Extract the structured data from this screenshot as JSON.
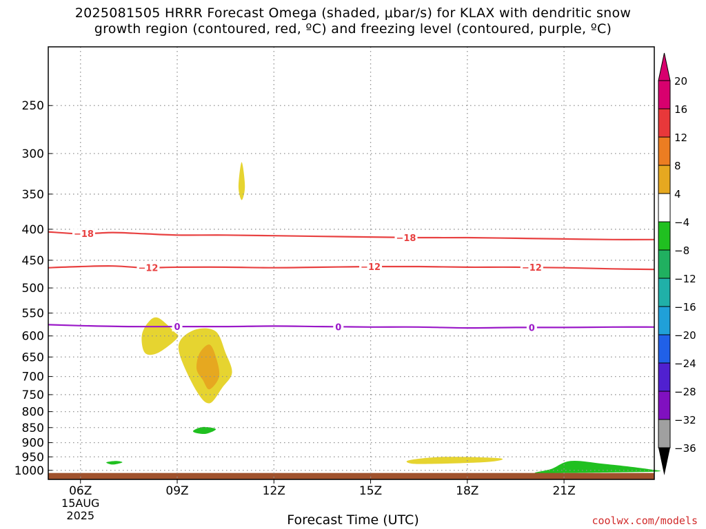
{
  "title": "2025081505 HRRR Forecast Omega (shaded, μbar/s) for KLAX with dendritic snow\ngrowth region (contoured, red, ºC) and freezing level (contoured, purple, ºC)",
  "credit": "coolwx.com/models",
  "chart_data": {
    "type": "heatmap",
    "title": "2025081505 HRRR Forecast Omega (shaded, μbar/s) for KLAX with dendritic snow growth region (contoured, red, ºC) and freezing level (contoured, purple, ºC)",
    "xlabel": "Forecast Time (UTC)",
    "ylabel": "",
    "xlim": [
      5,
      23.8
    ],
    "ylim": [
      1035,
      200
    ],
    "x_ticks": [
      {
        "value": 6,
        "label": "06Z",
        "sublabels": [
          "15AUG",
          "2025"
        ]
      },
      {
        "value": 9,
        "label": "09Z"
      },
      {
        "value": 12,
        "label": "12Z"
      },
      {
        "value": 15,
        "label": "15Z"
      },
      {
        "value": 18,
        "label": "18Z"
      },
      {
        "value": 21,
        "label": "21Z"
      }
    ],
    "y_ticks": [
      250,
      300,
      350,
      400,
      450,
      500,
      550,
      600,
      650,
      700,
      750,
      800,
      850,
      900,
      950,
      1000
    ],
    "grid": true,
    "colorbar": {
      "levels": [
        "20",
        "16",
        "12",
        "8",
        "4",
        "−4",
        "−8",
        "−12",
        "−16",
        "−20",
        "−24",
        "−28",
        "−32",
        "−36"
      ],
      "upper_fill": [
        "#d8006e",
        "#e8383a",
        "#ec7d22",
        "#e6a820",
        "#e6d430"
      ],
      "lower_fill": [
        "#20c020",
        "#20b060",
        "#20b0a8",
        "#20a0d8",
        "#2060e8",
        "#5020d0",
        "#8010c0",
        "#a0a0a0"
      ],
      "top_arrow": "#d8006e",
      "bottom_arrow": "#000000"
    },
    "omega_regions": [
      {
        "color": "#e6d430",
        "label_range": "4–8",
        "points": [
          [
            11.0,
            310
          ],
          [
            11.1,
            340
          ],
          [
            11.0,
            358
          ],
          [
            10.9,
            340
          ]
        ]
      },
      {
        "color": "#e6d430",
        "label_range": "4–8",
        "points": [
          [
            8.1,
            570
          ],
          [
            8.4,
            560
          ],
          [
            8.9,
            590
          ],
          [
            9.0,
            605
          ],
          [
            8.4,
            640
          ],
          [
            8.0,
            640
          ],
          [
            7.9,
            600
          ]
        ]
      },
      {
        "color": "#e6d430",
        "label_range": "4–8",
        "points": [
          [
            9.1,
            610
          ],
          [
            9.6,
            585
          ],
          [
            10.2,
            590
          ],
          [
            10.5,
            640
          ],
          [
            10.7,
            690
          ],
          [
            10.4,
            730
          ],
          [
            10.0,
            775
          ],
          [
            9.6,
            740
          ],
          [
            9.1,
            650
          ]
        ]
      },
      {
        "color": "#e6a820",
        "label_range": "8–12",
        "points": [
          [
            9.7,
            640
          ],
          [
            10.0,
            620
          ],
          [
            10.2,
            650
          ],
          [
            10.3,
            700
          ],
          [
            10.0,
            735
          ],
          [
            9.8,
            710
          ],
          [
            9.6,
            680
          ]
        ]
      },
      {
        "color": "#20c020",
        "label_range": "−4 – −8",
        "points": [
          [
            9.5,
            860
          ],
          [
            9.8,
            848
          ],
          [
            10.2,
            855
          ],
          [
            9.9,
            870
          ],
          [
            9.6,
            868
          ]
        ]
      },
      {
        "color": "#20c020",
        "label_range": "−4 – −8",
        "points": [
          [
            6.8,
            970
          ],
          [
            7.1,
            965
          ],
          [
            7.3,
            970
          ],
          [
            7.0,
            978
          ]
        ]
      },
      {
        "color": "#e6d430",
        "label_range": "4–8",
        "points": [
          [
            16.2,
            962
          ],
          [
            17.3,
            950
          ],
          [
            19.0,
            955
          ],
          [
            18.7,
            968
          ],
          [
            17.2,
            975
          ],
          [
            16.3,
            975
          ]
        ]
      },
      {
        "color": "#20c020",
        "label_range": "−4 – −8",
        "points": [
          [
            20.1,
            1010
          ],
          [
            20.6,
            995
          ],
          [
            21.2,
            965
          ],
          [
            22.2,
            975
          ],
          [
            23.6,
            995
          ],
          [
            23.8,
            1005
          ],
          [
            21.0,
            1010
          ]
        ]
      }
    ],
    "terrain": {
      "color": "#a0522d",
      "from_pressure": 1010
    },
    "contours": [
      {
        "name": "-18",
        "color": "#e84040",
        "label_x": [
          6.1,
          16.1
        ],
        "points": [
          [
            5.0,
            404
          ],
          [
            6.0,
            407
          ],
          [
            7.0,
            405
          ],
          [
            8.0,
            407
          ],
          [
            9.0,
            409
          ],
          [
            10.5,
            409
          ],
          [
            12.0,
            410
          ],
          [
            13.5,
            411
          ],
          [
            15.0,
            412
          ],
          [
            16.5,
            413
          ],
          [
            18.0,
            413
          ],
          [
            19.5,
            414
          ],
          [
            21.0,
            415
          ],
          [
            22.5,
            416
          ],
          [
            23.8,
            416
          ]
        ]
      },
      {
        "name": "-12",
        "color": "#e84040",
        "label_x": [
          8.1,
          15.0,
          20.0
        ],
        "points": [
          [
            5.0,
            463
          ],
          [
            6.0,
            461
          ],
          [
            7.0,
            460
          ],
          [
            8.0,
            463
          ],
          [
            9.0,
            462
          ],
          [
            10.5,
            462
          ],
          [
            12.0,
            463
          ],
          [
            13.5,
            462
          ],
          [
            15.0,
            461
          ],
          [
            16.5,
            461
          ],
          [
            18.0,
            462
          ],
          [
            19.5,
            462
          ],
          [
            21.0,
            463
          ],
          [
            22.5,
            465
          ],
          [
            23.8,
            466
          ]
        ]
      },
      {
        "name": "0",
        "color": "#9a18c8",
        "label_x": [
          9.0,
          14.0,
          20.0
        ],
        "points": [
          [
            5.0,
            575
          ],
          [
            6.0,
            577
          ],
          [
            7.5,
            579
          ],
          [
            9.0,
            579
          ],
          [
            10.5,
            579
          ],
          [
            12.0,
            578
          ],
          [
            13.5,
            579
          ],
          [
            15.0,
            580
          ],
          [
            16.5,
            580
          ],
          [
            18.0,
            582
          ],
          [
            19.5,
            581
          ],
          [
            21.0,
            581
          ],
          [
            22.5,
            580
          ],
          [
            23.8,
            580
          ]
        ]
      }
    ]
  }
}
